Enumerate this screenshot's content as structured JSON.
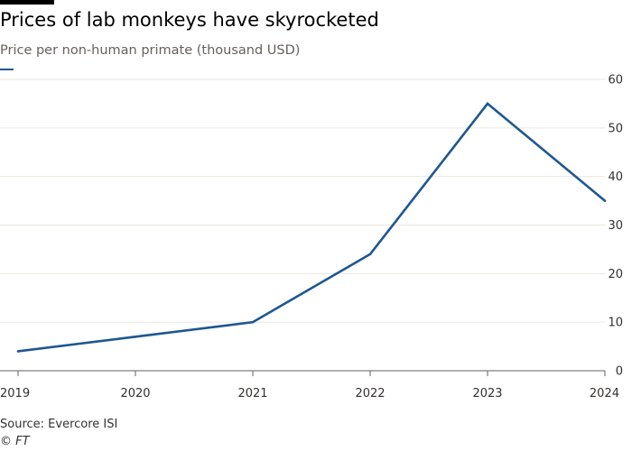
{
  "colors": {
    "line": "#1f5791",
    "grid": "#ebe6e0",
    "axis": "#66605c",
    "text": "#33302e"
  },
  "source_label": "Source: Evercore ISI",
  "credit_label": "© FT",
  "chart_data": {
    "type": "line",
    "title": "Prices of lab monkeys have skyrocketed",
    "subtitle": "Price per non-human primate (thousand USD)",
    "xlabel": "",
    "ylabel": "",
    "x": [
      2019,
      2020,
      2021,
      2022,
      2023,
      2024
    ],
    "x_tick_labels": [
      "2019",
      "2020",
      "2021",
      "2022",
      "2023",
      "2024"
    ],
    "xlim": [
      2019,
      2024
    ],
    "ylim": [
      0,
      60
    ],
    "y_ticks": [
      0,
      10,
      20,
      30,
      40,
      50,
      60
    ],
    "y_axis_position": "right",
    "grid": true,
    "series": [
      {
        "values": [
          4,
          7,
          10,
          24,
          55,
          35
        ]
      }
    ]
  }
}
